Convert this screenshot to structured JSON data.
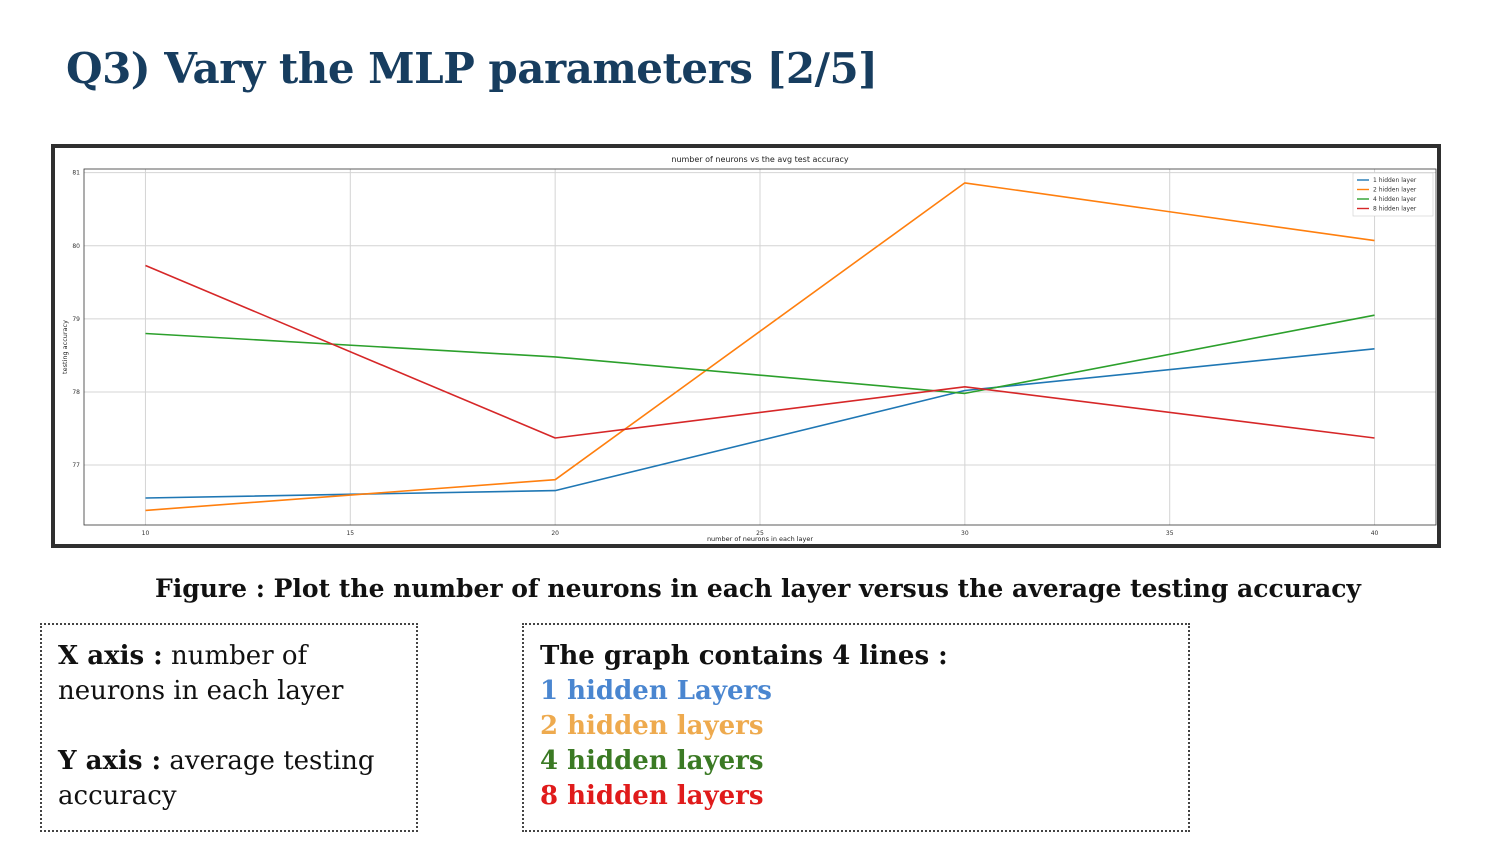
{
  "slide": {
    "title": "Q3) Vary the MLP parameters [2/5]",
    "caption": "Figure : Plot the number of neurons in each layer versus the average testing accuracy"
  },
  "axes_box": {
    "x_label": "X axis :",
    "x_text": " number of neurons in each layer",
    "y_label": "Y axis :",
    "y_text": " average testing accuracy"
  },
  "lines_box": {
    "heading": "The graph contains 4 lines :",
    "items": [
      {
        "text": "1 hidden Layers",
        "color": "#4a86d0"
      },
      {
        "text": "2 hidden layers",
        "color": "#eeaa4e"
      },
      {
        "text": "4 hidden layers",
        "color": "#3b7a24"
      },
      {
        "text": "8 hidden layers",
        "color": "#e01b1b"
      }
    ]
  },
  "chart_data": {
    "type": "line",
    "title": "number of neurons vs the avg test accuracy",
    "xlabel": "number of neurons in each layer",
    "ylabel": "testing accuracy",
    "x": [
      10,
      20,
      30,
      40
    ],
    "xticks": [
      10,
      15,
      20,
      25,
      30,
      35,
      40
    ],
    "yticks": [
      77,
      78,
      79,
      80,
      81
    ],
    "xlim": [
      8.5,
      41.5
    ],
    "ylim": [
      76.18,
      81.05
    ],
    "grid": true,
    "legend_position": "top-right",
    "series": [
      {
        "name": "1 hidden layer",
        "color": "#1f77b4",
        "values": [
          76.55,
          76.65,
          78.02,
          78.59
        ]
      },
      {
        "name": "2 hidden layer",
        "color": "#ff7f0e",
        "values": [
          76.38,
          76.8,
          80.86,
          80.07
        ]
      },
      {
        "name": "4 hidden layer",
        "color": "#2ca02c",
        "values": [
          78.8,
          78.48,
          77.98,
          79.05
        ]
      },
      {
        "name": "8 hidden layer",
        "color": "#d62728",
        "values": [
          79.73,
          77.37,
          78.07,
          77.37
        ]
      }
    ]
  }
}
